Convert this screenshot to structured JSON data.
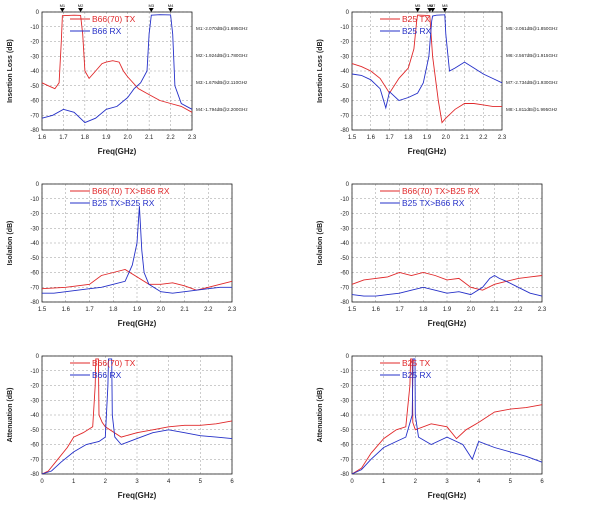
{
  "colors": {
    "red": "#e0282a",
    "blue": "#2530c8",
    "grid": "#9a9a9a",
    "axis": "#222222"
  },
  "chart_data": [
    {
      "type": "line",
      "ylabel": "Insertion Loss (dB)",
      "xlabel": "Freq(GHz)",
      "xlim": [
        1.6,
        2.3
      ],
      "ylim": [
        -80,
        0
      ],
      "xticks": [
        "1.6",
        "1.7",
        "1.8",
        "1.9",
        "2.0",
        "2.1",
        "2.2",
        "2.3"
      ],
      "yticks": [
        "0",
        "-10",
        "-20",
        "-30",
        "-40",
        "-50",
        "-60",
        "-70",
        "-80"
      ],
      "legend": [
        "B66(70) TX",
        "B66 RX"
      ],
      "markers": [
        {
          "label": "M1",
          "x": 1.695
        },
        {
          "label": "M2",
          "x": 1.78
        },
        {
          "label": "M3",
          "x": 2.11
        },
        {
          "label": "M4",
          "x": 2.2
        }
      ],
      "marker_readouts": [
        "M1:-2.070dB@1.695GHz",
        "M2:-1.924dB@1.780GHz",
        "M3:-1.679dB@2.110GHz",
        "M4:-1.794dB@2.200GHz"
      ],
      "series": [
        {
          "name": "B66(70) TX",
          "color": "red",
          "x": [
            1.6,
            1.63,
            1.66,
            1.68,
            1.69,
            1.695,
            1.75,
            1.78,
            1.79,
            1.8,
            1.82,
            1.85,
            1.88,
            1.9,
            1.93,
            1.96,
            1.98,
            2.0,
            2.05,
            2.1,
            2.15,
            2.2,
            2.25,
            2.3
          ],
          "y": [
            -48,
            -50,
            -52,
            -48,
            -20,
            -2.5,
            -2.2,
            -2.3,
            -15,
            -40,
            -45,
            -40,
            -35,
            -34,
            -33,
            -34,
            -40,
            -44,
            -52,
            -56,
            -60,
            -62,
            -64,
            -68
          ]
        },
        {
          "name": "B66 RX",
          "color": "blue",
          "x": [
            1.6,
            1.65,
            1.7,
            1.75,
            1.8,
            1.85,
            1.9,
            1.95,
            2.0,
            2.03,
            2.06,
            2.09,
            2.1,
            2.11,
            2.15,
            2.2,
            2.21,
            2.22,
            2.25,
            2.3
          ],
          "y": [
            -72,
            -70,
            -66,
            -68,
            -75,
            -72,
            -66,
            -64,
            -58,
            -52,
            -48,
            -40,
            -15,
            -2.2,
            -1.8,
            -2.0,
            -15,
            -50,
            -62,
            -66
          ]
        }
      ]
    },
    {
      "type": "line",
      "ylabel": "Insertion Loss (dB)",
      "xlabel": "Freq(GHz)",
      "xlim": [
        1.5,
        2.3
      ],
      "ylim": [
        -80,
        0
      ],
      "xticks": [
        "1.5",
        "1.6",
        "1.7",
        "1.8",
        "1.9",
        "2.0",
        "2.1",
        "2.2",
        "2.3"
      ],
      "yticks": [
        "0",
        "-10",
        "-20",
        "-30",
        "-40",
        "-50",
        "-60",
        "-70",
        "-80"
      ],
      "legend": [
        "B25 TX",
        "B25 RX"
      ],
      "markers": [
        {
          "label": "M5",
          "x": 1.85
        },
        {
          "label": "M6",
          "x": 1.915
        },
        {
          "label": "M7",
          "x": 1.93
        },
        {
          "label": "M8",
          "x": 1.995
        }
      ],
      "marker_readouts": [
        "M5:-2.061dB@1.850GHz",
        "M6:-2.567dB@1.915GHz",
        "M7:-2.734dB@1.930GHz",
        "M8:-1.811dB@1.995GHz"
      ],
      "series": [
        {
          "name": "B25 TX",
          "color": "red",
          "x": [
            1.5,
            1.55,
            1.6,
            1.65,
            1.7,
            1.75,
            1.8,
            1.83,
            1.845,
            1.85,
            1.9,
            1.915,
            1.93,
            1.96,
            1.98,
            2.0,
            2.05,
            2.1,
            2.15,
            2.2,
            2.25,
            2.3
          ],
          "y": [
            -35,
            -37,
            -40,
            -45,
            -55,
            -45,
            -38,
            -25,
            -6,
            -2.1,
            -2.3,
            -2.6,
            -30,
            -60,
            -75,
            -72,
            -66,
            -62,
            -62,
            -63,
            -64,
            -64
          ]
        },
        {
          "name": "B25 RX",
          "color": "blue",
          "x": [
            1.5,
            1.55,
            1.6,
            1.65,
            1.68,
            1.7,
            1.75,
            1.8,
            1.85,
            1.88,
            1.91,
            1.925,
            1.93,
            1.95,
            1.99,
            1.995,
            2.0,
            2.02,
            2.05,
            2.1,
            2.15,
            2.2,
            2.25,
            2.3
          ],
          "y": [
            -42,
            -43,
            -46,
            -52,
            -65,
            -54,
            -60,
            -58,
            -55,
            -48,
            -30,
            -6,
            -2.7,
            -2.2,
            -1.9,
            -1.8,
            -15,
            -40,
            -38,
            -34,
            -38,
            -42,
            -45,
            -48
          ]
        }
      ]
    },
    {
      "type": "line",
      "ylabel": "Isolation (dB)",
      "xlabel": "Freq(GHz)",
      "xlim": [
        1.5,
        2.3
      ],
      "ylim": [
        -80,
        0
      ],
      "xticks": [
        "1.5",
        "1.6",
        "1.7",
        "1.8",
        "1.9",
        "2.0",
        "2.1",
        "2.2",
        "2.3"
      ],
      "yticks": [
        "0",
        "-10",
        "-20",
        "-30",
        "-40",
        "-50",
        "-60",
        "-70",
        "-80"
      ],
      "legend": [
        "B66(70) TX>B66 RX",
        "B25 TX>B25 RX"
      ],
      "series": [
        {
          "name": "B66(70) TX>B66 RX",
          "color": "red",
          "x": [
            1.5,
            1.6,
            1.7,
            1.75,
            1.8,
            1.85,
            1.9,
            1.95,
            2.0,
            2.05,
            2.1,
            2.15,
            2.2,
            2.25,
            2.3
          ],
          "y": [
            -71,
            -70,
            -68,
            -62,
            -60,
            -58,
            -63,
            -68,
            -68,
            -67,
            -69,
            -72,
            -70,
            -68,
            -66
          ]
        },
        {
          "name": "B25 TX>B25 RX",
          "color": "blue",
          "x": [
            1.5,
            1.55,
            1.6,
            1.65,
            1.7,
            1.75,
            1.8,
            1.85,
            1.88,
            1.9,
            1.91,
            1.92,
            1.93,
            1.95,
            2.0,
            2.05,
            2.1,
            2.15,
            2.2,
            2.25,
            2.3
          ],
          "y": [
            -74,
            -74,
            -73,
            -72,
            -71,
            -70,
            -68,
            -66,
            -55,
            -40,
            -15,
            -45,
            -60,
            -68,
            -73,
            -74,
            -73,
            -72,
            -71,
            -70,
            -70
          ]
        }
      ]
    },
    {
      "type": "line",
      "ylabel": "Isolation (dB)",
      "xlabel": "Freq(GHz)",
      "xlim": [
        1.5,
        2.3
      ],
      "ylim": [
        -80,
        0
      ],
      "xticks": [
        "1.5",
        "1.6",
        "1.7",
        "1.8",
        "1.9",
        "2.0",
        "2.1",
        "2.2",
        "2.3"
      ],
      "yticks": [
        "0",
        "-10",
        "-20",
        "-30",
        "-40",
        "-50",
        "-60",
        "-70",
        "-80"
      ],
      "legend": [
        "B66(70) TX>B25 RX",
        "B25 TX>B66 RX"
      ],
      "series": [
        {
          "name": "B66(70) TX>B25 RX",
          "color": "red",
          "x": [
            1.5,
            1.55,
            1.6,
            1.65,
            1.7,
            1.75,
            1.8,
            1.85,
            1.9,
            1.95,
            2.0,
            2.05,
            2.1,
            2.15,
            2.2,
            2.25,
            2.3
          ],
          "y": [
            -68,
            -65,
            -64,
            -63,
            -60,
            -62,
            -60,
            -62,
            -65,
            -64,
            -70,
            -72,
            -68,
            -66,
            -64,
            -63,
            -62
          ]
        },
        {
          "name": "B25 TX>B66 RX",
          "color": "blue",
          "x": [
            1.5,
            1.55,
            1.6,
            1.65,
            1.7,
            1.75,
            1.8,
            1.85,
            1.9,
            1.95,
            2.0,
            2.05,
            2.08,
            2.1,
            2.12,
            2.15,
            2.2,
            2.25,
            2.3
          ],
          "y": [
            -75,
            -76,
            -76,
            -75,
            -74,
            -72,
            -70,
            -72,
            -74,
            -73,
            -75,
            -70,
            -64,
            -62,
            -64,
            -66,
            -70,
            -74,
            -76
          ]
        }
      ]
    },
    {
      "type": "line",
      "ylabel": "Attenuation (dB)",
      "xlabel": "Freq(GHz)",
      "xlim": [
        0,
        6
      ],
      "ylim": [
        -80,
        0
      ],
      "xticks": [
        "0",
        "1",
        "2",
        "3",
        "4",
        "5",
        "6"
      ],
      "yticks": [
        "0",
        "-10",
        "-20",
        "-30",
        "-40",
        "-50",
        "-60",
        "-70",
        "-80"
      ],
      "legend": [
        "B66(70) TX",
        "B66 RX"
      ],
      "series": [
        {
          "name": "B66(70) TX",
          "color": "red",
          "x": [
            0,
            0.2,
            0.5,
            0.8,
            1.0,
            1.3,
            1.6,
            1.68,
            1.7,
            1.78,
            1.8,
            1.9,
            2.0,
            2.5,
            3.0,
            3.5,
            4.0,
            4.5,
            5.0,
            5.5,
            6.0
          ],
          "y": [
            -80,
            -78,
            -70,
            -62,
            -55,
            -52,
            -48,
            -20,
            -2,
            -2,
            -40,
            -45,
            -48,
            -55,
            -52,
            -50,
            -48,
            -47,
            -47,
            -46,
            -44
          ]
        },
        {
          "name": "B66 RX",
          "color": "blue",
          "x": [
            0,
            0.3,
            0.6,
            1.0,
            1.4,
            1.8,
            2.0,
            2.08,
            2.1,
            2.2,
            2.22,
            2.3,
            2.5,
            3.0,
            3.5,
            4.0,
            4.5,
            5.0,
            5.5,
            6.0
          ],
          "y": [
            -80,
            -78,
            -72,
            -65,
            -60,
            -58,
            -55,
            -20,
            -2,
            -2,
            -40,
            -55,
            -60,
            -56,
            -52,
            -50,
            -52,
            -54,
            -55,
            -56
          ]
        }
      ]
    },
    {
      "type": "line",
      "ylabel": "Attenuation (dB)",
      "xlabel": "Freq(GHz)",
      "xlim": [
        0,
        6
      ],
      "ylim": [
        -80,
        0
      ],
      "xticks": [
        "0",
        "1",
        "2",
        "3",
        "4",
        "5",
        "6"
      ],
      "yticks": [
        "0",
        "-10",
        "-20",
        "-30",
        "-40",
        "-50",
        "-60",
        "-70",
        "-80"
      ],
      "legend": [
        "B25 TX",
        "B25 RX"
      ],
      "series": [
        {
          "name": "B25 TX",
          "color": "red",
          "x": [
            0,
            0.3,
            0.6,
            1.0,
            1.4,
            1.7,
            1.83,
            1.85,
            1.9,
            1.92,
            2.0,
            2.5,
            3.0,
            3.3,
            3.6,
            4.0,
            4.5,
            5.0,
            5.5,
            6.0
          ],
          "y": [
            -80,
            -76,
            -66,
            -56,
            -50,
            -48,
            -20,
            -2,
            -2,
            -45,
            -50,
            -46,
            -48,
            -56,
            -50,
            -45,
            -38,
            -36,
            -35,
            -33
          ]
        },
        {
          "name": "B25 RX",
          "color": "blue",
          "x": [
            0,
            0.3,
            0.6,
            1.0,
            1.4,
            1.7,
            1.9,
            1.93,
            1.99,
            2.0,
            2.1,
            2.5,
            3.0,
            3.5,
            3.8,
            4.0,
            4.5,
            5.0,
            5.5,
            6.0
          ],
          "y": [
            -80,
            -77,
            -70,
            -62,
            -58,
            -55,
            -40,
            -2,
            -2,
            -40,
            -55,
            -60,
            -55,
            -60,
            -70,
            -58,
            -62,
            -65,
            -68,
            -72
          ]
        }
      ]
    }
  ]
}
